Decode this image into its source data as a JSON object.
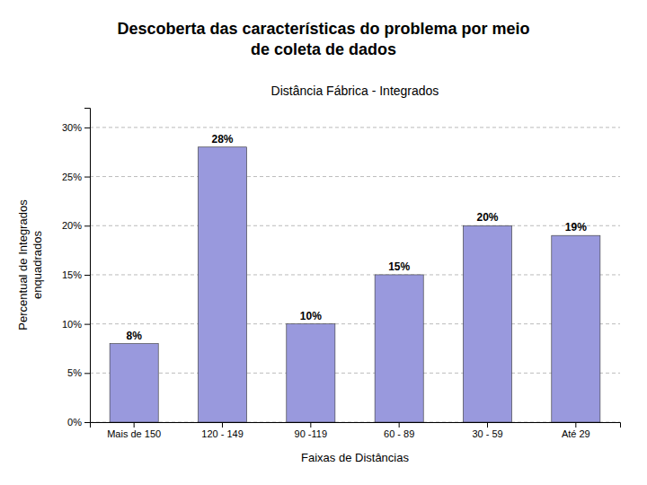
{
  "chart_data": {
    "type": "bar",
    "title": "Descoberta das características do problema por meio\nde coleta de dados",
    "subtitle": "Distância Fábrica - Integrados",
    "xlabel": "Faixas de Distâncias",
    "ylabel": "Percentual de Integrados\nenquadrados",
    "categories": [
      "Mais de 150",
      "120 - 149",
      "90 -119",
      "60 - 89",
      "30 - 59",
      "Até 29"
    ],
    "values": [
      8,
      28,
      10,
      15,
      20,
      19
    ],
    "value_labels": [
      "8%",
      "28%",
      "10%",
      "15%",
      "20%",
      "19%"
    ],
    "data_labels": true,
    "color": "#9999dd",
    "ylim": [
      0,
      32
    ],
    "yticks": [
      {
        "value": 0,
        "label": "0%"
      },
      {
        "value": 5,
        "label": "5%"
      },
      {
        "value": 10,
        "label": "10%"
      },
      {
        "value": 15,
        "label": "15%"
      },
      {
        "value": 20,
        "label": "20%"
      },
      {
        "value": 25,
        "label": "25%"
      },
      {
        "value": 30,
        "label": "30%"
      }
    ],
    "grid": true
  }
}
